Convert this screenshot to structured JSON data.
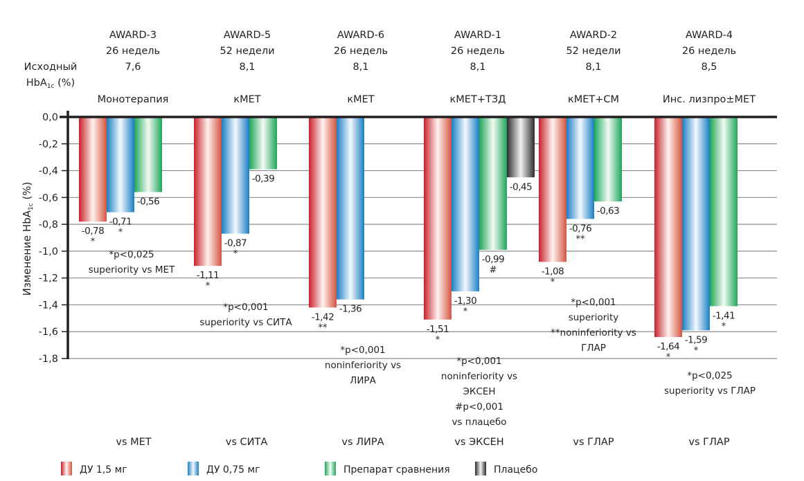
{
  "chart_data": {
    "type": "bar",
    "ylabel": "Изменение HbA1c (%)",
    "ylabel_main": "Изменение HbA",
    "ylabel_sub": "1c",
    "ylabel_unit": " (%)",
    "baseline_label_line1": "Исходный",
    "baseline_label_line2_main": "HbA",
    "baseline_label_line2_sub": "1c",
    "baseline_label_line2_unit": " (%)",
    "ylim": [
      -1.8,
      0
    ],
    "yticks": [
      0,
      -0.2,
      -0.4,
      -0.6,
      -0.8,
      -1.0,
      -1.2,
      -1.4,
      -1.6,
      -1.8
    ],
    "ytick_labels": [
      "0,0",
      "-0,2",
      "-0,4",
      "-0,6",
      "-0,8",
      "-1,0",
      "-1,2",
      "-1,4",
      "-1,6",
      "-1,8"
    ],
    "grid": true,
    "legend_position": "bottom",
    "series": [
      {
        "key": "du15",
        "name": "ДУ 1,5 мг",
        "color": "#d2232a"
      },
      {
        "key": "du075",
        "name": "ДУ 0,75 мг",
        "color": "#1b82c5"
      },
      {
        "key": "comp",
        "name": "Препарат сравнения",
        "color": "#1fa85a"
      },
      {
        "key": "placebo",
        "name": "Плацебо",
        "color": "#333333"
      }
    ],
    "groups": [
      {
        "study": "AWARD-3",
        "duration": "26 недель",
        "baseline": "7,6",
        "therapy": "Монотерапия",
        "comparison": "vs МЕТ",
        "bars": [
          {
            "series": "du15",
            "value": -0.78,
            "label": "-0,78",
            "mark": "*"
          },
          {
            "series": "du075",
            "value": -0.71,
            "label": "-0,71",
            "mark": "*"
          },
          {
            "series": "comp",
            "value": -0.56,
            "label": "-0,56",
            "mark": ""
          }
        ],
        "note": [
          "*p<0,025",
          "superiority vs МЕТ"
        ]
      },
      {
        "study": "AWARD-5",
        "duration": "52 недели",
        "baseline": "8,1",
        "therapy": "кМЕТ",
        "comparison": "vs СИТА",
        "bars": [
          {
            "series": "du15",
            "value": -1.11,
            "label": "-1,11",
            "mark": "*"
          },
          {
            "series": "du075",
            "value": -0.87,
            "label": "-0,87",
            "mark": "*"
          },
          {
            "series": "comp",
            "value": -0.39,
            "label": "-0,39",
            "mark": ""
          }
        ],
        "note": [
          "*p<0,001",
          "superiority vs СИТА"
        ]
      },
      {
        "study": "AWARD-6",
        "duration": "26 недель",
        "baseline": "8,1",
        "therapy": "кМЕТ",
        "comparison": "vs ЛИРА",
        "bars": [
          {
            "series": "du15",
            "value": -1.42,
            "label": "-1,42",
            "mark": "**"
          },
          {
            "series": "comp",
            "value": -1.36,
            "label": "-1,36",
            "mark": ""
          }
        ],
        "note": [
          "*p<0,001",
          "noninferiority vs",
          "ЛИРА"
        ]
      },
      {
        "study": "AWARD-1",
        "duration": "26 недель",
        "baseline": "8,1",
        "therapy": "кМЕТ+ТЗД",
        "comparison": "vs ЭКСЕН",
        "bars": [
          {
            "series": "du15",
            "value": -1.51,
            "label": "-1,51",
            "mark": "*"
          },
          {
            "series": "du075",
            "value": -1.3,
            "label": "-1,30",
            "mark": "*"
          },
          {
            "series": "comp",
            "value": -0.99,
            "label": "-0,99",
            "mark": "#"
          },
          {
            "series": "placebo",
            "value": -0.45,
            "label": "-0,45",
            "mark": ""
          }
        ],
        "note": [
          "*p<0,001",
          "noninferiority vs",
          "ЭКСЕН",
          "#p<0,001",
          "vs плацебо"
        ]
      },
      {
        "study": "AWARD-2",
        "duration": "52 недели",
        "baseline": "8,1",
        "therapy": "кМЕТ+СМ",
        "comparison": "vs ГЛАР",
        "bars": [
          {
            "series": "du15",
            "value": -1.08,
            "label": "-1,08",
            "mark": "*"
          },
          {
            "series": "du075",
            "value": -0.76,
            "label": "-0,76",
            "mark": "**"
          },
          {
            "series": "comp",
            "value": -0.63,
            "label": "-0,63",
            "mark": ""
          }
        ],
        "note": [
          "*p<0,001",
          "superiority",
          "**noninferiority vs",
          "ГЛАР"
        ]
      },
      {
        "study": "AWARD-4",
        "duration": "26 недель",
        "baseline": "8,5",
        "therapy": "Инс. лизпро±МЕТ",
        "comparison": "vs ГЛАР",
        "bars": [
          {
            "series": "du15",
            "value": -1.64,
            "label": "-1,64",
            "mark": "*"
          },
          {
            "series": "du075",
            "value": -1.59,
            "label": "-1,59",
            "mark": "*"
          },
          {
            "series": "comp",
            "value": -1.41,
            "label": "-1,41",
            "mark": "*"
          }
        ],
        "note": [
          "*p<0,025",
          "superiority vs ГЛАР"
        ]
      }
    ]
  }
}
